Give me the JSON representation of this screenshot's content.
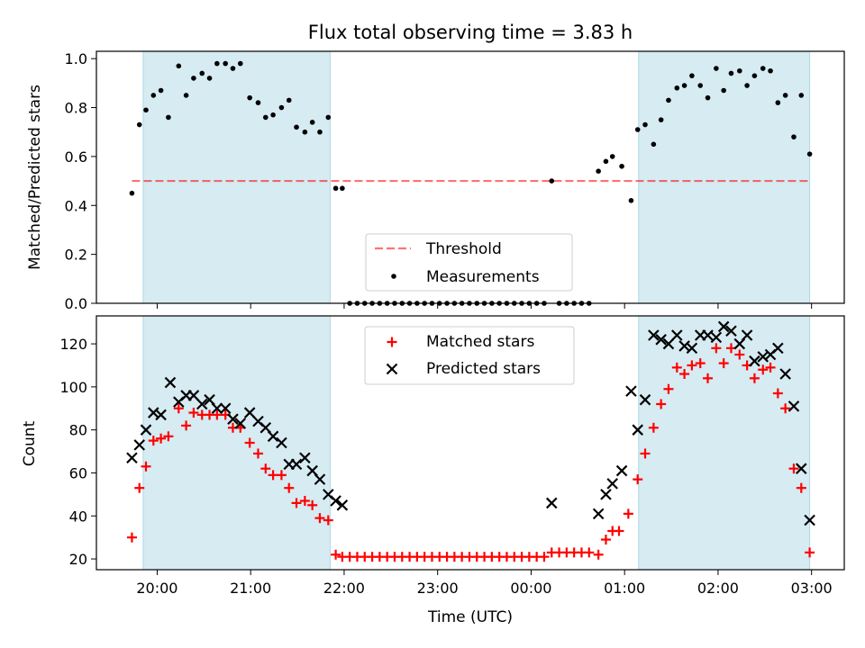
{
  "figure": {
    "title": "Flux total observing time = 3.83 h",
    "xlabel": "Time (UTC)",
    "xticks": [
      {
        "value": 20.0,
        "label": "20:00"
      },
      {
        "value": 21.0,
        "label": "21:00"
      },
      {
        "value": 22.0,
        "label": "22:00"
      },
      {
        "value": 23.0,
        "label": "23:00"
      },
      {
        "value": 24.0,
        "label": "00:00"
      },
      {
        "value": 25.0,
        "label": "01:00"
      },
      {
        "value": 26.0,
        "label": "02:00"
      },
      {
        "value": 27.0,
        "label": "03:00"
      }
    ],
    "colors": {
      "observing_span": "#add8e6",
      "threshold": "#ff0000",
      "measurements": "#000000",
      "matched": "#ff0000",
      "predicted": "#000000"
    }
  },
  "chart_data": [
    {
      "type": "scatter",
      "ylabel": "Matched/Predicted stars",
      "xlim": [
        19.35,
        27.35
      ],
      "ylim": [
        0.0,
        1.03
      ],
      "yticks": [
        {
          "value": 0.0,
          "label": "0.0"
        },
        {
          "value": 0.2,
          "label": "0.2"
        },
        {
          "value": 0.4,
          "label": "0.4"
        },
        {
          "value": 0.6,
          "label": "0.6"
        },
        {
          "value": 0.8,
          "label": "0.8"
        },
        {
          "value": 1.0,
          "label": "1.0"
        }
      ],
      "legend": {
        "position": "bottom-center",
        "threshold_label": "Threshold",
        "measurements_label": "Measurements"
      },
      "threshold": 0.5,
      "spans": [
        [
          19.85,
          21.85
        ],
        [
          25.15,
          26.98
        ]
      ],
      "series": [
        {
          "name": "Measurements",
          "marker": "dot",
          "points": [
            [
              19.73,
              0.45
            ],
            [
              19.81,
              0.73
            ],
            [
              19.88,
              0.79
            ],
            [
              19.96,
              0.85
            ],
            [
              20.04,
              0.87
            ],
            [
              20.12,
              0.76
            ],
            [
              20.23,
              0.97
            ],
            [
              20.31,
              0.85
            ],
            [
              20.39,
              0.92
            ],
            [
              20.48,
              0.94
            ],
            [
              20.56,
              0.92
            ],
            [
              20.64,
              0.98
            ],
            [
              20.73,
              0.98
            ],
            [
              20.81,
              0.96
            ],
            [
              20.89,
              0.98
            ],
            [
              20.99,
              0.84
            ],
            [
              21.08,
              0.82
            ],
            [
              21.16,
              0.76
            ],
            [
              21.24,
              0.77
            ],
            [
              21.33,
              0.8
            ],
            [
              21.41,
              0.83
            ],
            [
              21.49,
              0.72
            ],
            [
              21.58,
              0.7
            ],
            [
              21.66,
              0.74
            ],
            [
              21.74,
              0.7
            ],
            [
              21.83,
              0.76
            ],
            [
              21.91,
              0.47
            ],
            [
              21.98,
              0.47
            ],
            [
              22.06,
              0.0
            ],
            [
              22.14,
              0.0
            ],
            [
              22.22,
              0.0
            ],
            [
              22.3,
              0.0
            ],
            [
              22.38,
              0.0
            ],
            [
              22.46,
              0.0
            ],
            [
              22.54,
              0.0
            ],
            [
              22.62,
              0.0
            ],
            [
              22.7,
              0.0
            ],
            [
              22.78,
              0.0
            ],
            [
              22.86,
              0.0
            ],
            [
              22.94,
              0.0
            ],
            [
              23.02,
              0.0
            ],
            [
              23.1,
              0.0
            ],
            [
              23.18,
              0.0
            ],
            [
              23.26,
              0.0
            ],
            [
              23.34,
              0.0
            ],
            [
              23.42,
              0.0
            ],
            [
              23.5,
              0.0
            ],
            [
              23.58,
              0.0
            ],
            [
              23.66,
              0.0
            ],
            [
              23.74,
              0.0
            ],
            [
              23.82,
              0.0
            ],
            [
              23.9,
              0.0
            ],
            [
              23.98,
              0.0
            ],
            [
              24.06,
              0.0
            ],
            [
              24.14,
              0.0
            ],
            [
              24.22,
              0.5
            ],
            [
              24.3,
              0.0
            ],
            [
              24.38,
              0.0
            ],
            [
              24.46,
              0.0
            ],
            [
              24.54,
              0.0
            ],
            [
              24.62,
              0.0
            ],
            [
              24.72,
              0.54
            ],
            [
              24.8,
              0.58
            ],
            [
              24.87,
              0.6
            ],
            [
              24.97,
              0.56
            ],
            [
              25.07,
              0.42
            ],
            [
              25.14,
              0.71
            ],
            [
              25.22,
              0.73
            ],
            [
              25.31,
              0.65
            ],
            [
              25.39,
              0.75
            ],
            [
              25.47,
              0.83
            ],
            [
              25.56,
              0.88
            ],
            [
              25.64,
              0.89
            ],
            [
              25.72,
              0.93
            ],
            [
              25.81,
              0.89
            ],
            [
              25.89,
              0.84
            ],
            [
              25.98,
              0.96
            ],
            [
              26.06,
              0.87
            ],
            [
              26.14,
              0.94
            ],
            [
              26.23,
              0.95
            ],
            [
              26.31,
              0.89
            ],
            [
              26.39,
              0.93
            ],
            [
              26.48,
              0.96
            ],
            [
              26.56,
              0.95
            ],
            [
              26.64,
              0.82
            ],
            [
              26.72,
              0.85
            ],
            [
              26.81,
              0.68
            ],
            [
              26.89,
              0.85
            ],
            [
              26.98,
              0.61
            ]
          ]
        }
      ]
    },
    {
      "type": "scatter",
      "ylabel": "Count",
      "xlim": [
        19.35,
        27.35
      ],
      "ylim": [
        15,
        133
      ],
      "yticks": [
        {
          "value": 20,
          "label": "20"
        },
        {
          "value": 40,
          "label": "40"
        },
        {
          "value": 60,
          "label": "60"
        },
        {
          "value": 80,
          "label": "80"
        },
        {
          "value": 100,
          "label": "100"
        },
        {
          "value": 120,
          "label": "120"
        }
      ],
      "legend": {
        "position": "top-center",
        "matched_label": "Matched stars",
        "predicted_label": "Predicted stars"
      },
      "spans": [
        [
          19.85,
          21.85
        ],
        [
          25.15,
          26.98
        ]
      ],
      "series": [
        {
          "name": "Matched stars",
          "marker": "plus",
          "points": [
            [
              19.73,
              30
            ],
            [
              19.81,
              53
            ],
            [
              19.88,
              63
            ],
            [
              19.96,
              75
            ],
            [
              20.04,
              76
            ],
            [
              20.12,
              77
            ],
            [
              20.23,
              90
            ],
            [
              20.31,
              82
            ],
            [
              20.39,
              88
            ],
            [
              20.48,
              87
            ],
            [
              20.56,
              87
            ],
            [
              20.64,
              87
            ],
            [
              20.73,
              87
            ],
            [
              20.81,
              81
            ],
            [
              20.89,
              81
            ],
            [
              20.99,
              74
            ],
            [
              21.08,
              69
            ],
            [
              21.16,
              62
            ],
            [
              21.24,
              59
            ],
            [
              21.33,
              59
            ],
            [
              21.41,
              53
            ],
            [
              21.49,
              46
            ],
            [
              21.58,
              47
            ],
            [
              21.66,
              45
            ],
            [
              21.74,
              39
            ],
            [
              21.83,
              38
            ],
            [
              21.91,
              22
            ],
            [
              21.98,
              21
            ],
            [
              22.06,
              21
            ],
            [
              22.14,
              21
            ],
            [
              22.22,
              21
            ],
            [
              22.3,
              21
            ],
            [
              22.38,
              21
            ],
            [
              22.46,
              21
            ],
            [
              22.54,
              21
            ],
            [
              22.62,
              21
            ],
            [
              22.7,
              21
            ],
            [
              22.78,
              21
            ],
            [
              22.86,
              21
            ],
            [
              22.94,
              21
            ],
            [
              23.02,
              21
            ],
            [
              23.1,
              21
            ],
            [
              23.18,
              21
            ],
            [
              23.26,
              21
            ],
            [
              23.34,
              21
            ],
            [
              23.42,
              21
            ],
            [
              23.5,
              21
            ],
            [
              23.58,
              21
            ],
            [
              23.66,
              21
            ],
            [
              23.74,
              21
            ],
            [
              23.82,
              21
            ],
            [
              23.9,
              21
            ],
            [
              23.98,
              21
            ],
            [
              24.06,
              21
            ],
            [
              24.14,
              21
            ],
            [
              24.22,
              23
            ],
            [
              24.3,
              23
            ],
            [
              24.38,
              23
            ],
            [
              24.46,
              23
            ],
            [
              24.54,
              23
            ],
            [
              24.62,
              23
            ],
            [
              24.72,
              22
            ],
            [
              24.8,
              29
            ],
            [
              24.87,
              33
            ],
            [
              24.94,
              33
            ],
            [
              25.04,
              41
            ],
            [
              25.14,
              57
            ],
            [
              25.22,
              69
            ],
            [
              25.31,
              81
            ],
            [
              25.39,
              92
            ],
            [
              25.47,
              99
            ],
            [
              25.56,
              109
            ],
            [
              25.64,
              106
            ],
            [
              25.72,
              110
            ],
            [
              25.81,
              111
            ],
            [
              25.89,
              104
            ],
            [
              25.98,
              118
            ],
            [
              26.06,
              111
            ],
            [
              26.14,
              118
            ],
            [
              26.23,
              115
            ],
            [
              26.31,
              110
            ],
            [
              26.39,
              104
            ],
            [
              26.48,
              108
            ],
            [
              26.56,
              109
            ],
            [
              26.64,
              97
            ],
            [
              26.72,
              90
            ],
            [
              26.81,
              62
            ],
            [
              26.89,
              53
            ],
            [
              26.98,
              23
            ]
          ]
        },
        {
          "name": "Predicted stars",
          "marker": "x",
          "points": [
            [
              19.73,
              67
            ],
            [
              19.81,
              73
            ],
            [
              19.88,
              80
            ],
            [
              19.96,
              88
            ],
            [
              20.04,
              87
            ],
            [
              20.14,
              102
            ],
            [
              20.23,
              93
            ],
            [
              20.31,
              96
            ],
            [
              20.39,
              96
            ],
            [
              20.48,
              92
            ],
            [
              20.56,
              94
            ],
            [
              20.64,
              90
            ],
            [
              20.73,
              90
            ],
            [
              20.81,
              85
            ],
            [
              20.89,
              83
            ],
            [
              20.99,
              88
            ],
            [
              21.08,
              84
            ],
            [
              21.16,
              81
            ],
            [
              21.24,
              77
            ],
            [
              21.33,
              74
            ],
            [
              21.41,
              64
            ],
            [
              21.49,
              64
            ],
            [
              21.58,
              67
            ],
            [
              21.66,
              61
            ],
            [
              21.74,
              57
            ],
            [
              21.83,
              50
            ],
            [
              21.91,
              47
            ],
            [
              21.98,
              45
            ],
            [
              24.22,
              46
            ],
            [
              24.72,
              41
            ],
            [
              24.8,
              50
            ],
            [
              24.87,
              55
            ],
            [
              24.97,
              61
            ],
            [
              25.07,
              98
            ],
            [
              25.14,
              80
            ],
            [
              25.22,
              94
            ],
            [
              25.31,
              124
            ],
            [
              25.39,
              122
            ],
            [
              25.47,
              120
            ],
            [
              25.56,
              124
            ],
            [
              25.64,
              119
            ],
            [
              25.72,
              118
            ],
            [
              25.81,
              124
            ],
            [
              25.89,
              124
            ],
            [
              25.98,
              123
            ],
            [
              26.06,
              128
            ],
            [
              26.14,
              126
            ],
            [
              26.23,
              120
            ],
            [
              26.31,
              124
            ],
            [
              26.39,
              112
            ],
            [
              26.48,
              114
            ],
            [
              26.56,
              115
            ],
            [
              26.64,
              118
            ],
            [
              26.72,
              106
            ],
            [
              26.81,
              91
            ],
            [
              26.89,
              62
            ],
            [
              26.98,
              38
            ]
          ]
        }
      ]
    }
  ]
}
